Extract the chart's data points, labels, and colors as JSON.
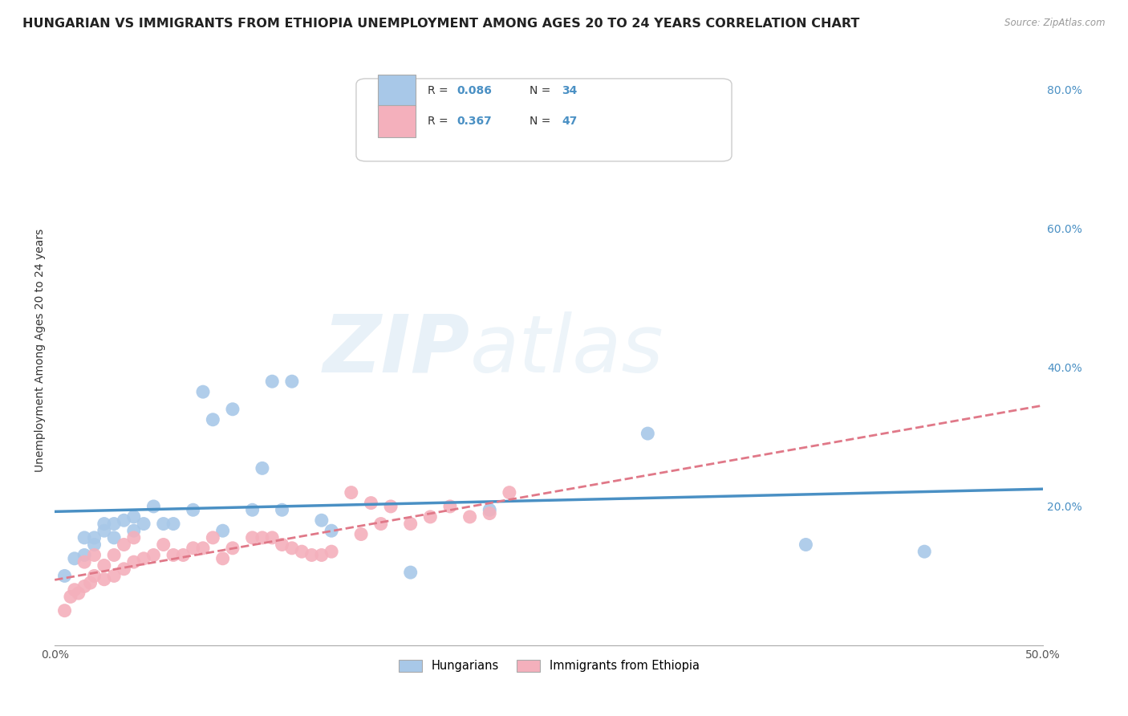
{
  "title": "HUNGARIAN VS IMMIGRANTS FROM ETHIOPIA UNEMPLOYMENT AMONG AGES 20 TO 24 YEARS CORRELATION CHART",
  "source": "Source: ZipAtlas.com",
  "ylabel": "Unemployment Among Ages 20 to 24 years",
  "xlim": [
    0.0,
    0.5
  ],
  "ylim": [
    0.0,
    0.85
  ],
  "yticks": [
    0.2,
    0.4,
    0.6,
    0.8
  ],
  "ytick_labels": [
    "20.0%",
    "40.0%",
    "60.0%",
    "80.0%"
  ],
  "legend1_R": "0.086",
  "legend1_N": "34",
  "legend2_R": "0.367",
  "legend2_N": "47",
  "color_hungarian": "#a8c8e8",
  "color_ethiopia": "#f4b0bc",
  "color_hungarian_line": "#4a90c4",
  "color_ethiopia_line": "#e07888",
  "color_text_blue": "#4a90c4",
  "color_text_pink": "#e07888",
  "watermark_zip": "ZIP",
  "watermark_atlas": "atlas",
  "hungarian_x": [
    0.005,
    0.01,
    0.015,
    0.015,
    0.02,
    0.02,
    0.025,
    0.025,
    0.03,
    0.03,
    0.035,
    0.04,
    0.04,
    0.045,
    0.05,
    0.055,
    0.06,
    0.07,
    0.075,
    0.08,
    0.085,
    0.09,
    0.1,
    0.105,
    0.11,
    0.115,
    0.12,
    0.135,
    0.14,
    0.18,
    0.22,
    0.3,
    0.38,
    0.44
  ],
  "hungarian_y": [
    0.1,
    0.125,
    0.13,
    0.155,
    0.145,
    0.155,
    0.165,
    0.175,
    0.155,
    0.175,
    0.18,
    0.165,
    0.185,
    0.175,
    0.2,
    0.175,
    0.175,
    0.195,
    0.365,
    0.325,
    0.165,
    0.34,
    0.195,
    0.255,
    0.38,
    0.195,
    0.38,
    0.18,
    0.165,
    0.105,
    0.195,
    0.305,
    0.145,
    0.135
  ],
  "ethiopia_x": [
    0.005,
    0.008,
    0.01,
    0.012,
    0.015,
    0.015,
    0.018,
    0.02,
    0.02,
    0.025,
    0.025,
    0.03,
    0.03,
    0.035,
    0.035,
    0.04,
    0.04,
    0.045,
    0.05,
    0.055,
    0.06,
    0.065,
    0.07,
    0.075,
    0.08,
    0.085,
    0.09,
    0.1,
    0.105,
    0.11,
    0.115,
    0.12,
    0.125,
    0.13,
    0.135,
    0.14,
    0.15,
    0.155,
    0.16,
    0.165,
    0.17,
    0.18,
    0.19,
    0.2,
    0.21,
    0.22,
    0.23
  ],
  "ethiopia_y": [
    0.05,
    0.07,
    0.08,
    0.075,
    0.085,
    0.12,
    0.09,
    0.1,
    0.13,
    0.095,
    0.115,
    0.1,
    0.13,
    0.11,
    0.145,
    0.12,
    0.155,
    0.125,
    0.13,
    0.145,
    0.13,
    0.13,
    0.14,
    0.14,
    0.155,
    0.125,
    0.14,
    0.155,
    0.155,
    0.155,
    0.145,
    0.14,
    0.135,
    0.13,
    0.13,
    0.135,
    0.22,
    0.16,
    0.205,
    0.175,
    0.2,
    0.175,
    0.185,
    0.2,
    0.185,
    0.19,
    0.22
  ],
  "bg_color": "#ffffff",
  "grid_color": "#cccccc",
  "title_fontsize": 11.5,
  "axis_label_fontsize": 10,
  "tick_fontsize": 10
}
